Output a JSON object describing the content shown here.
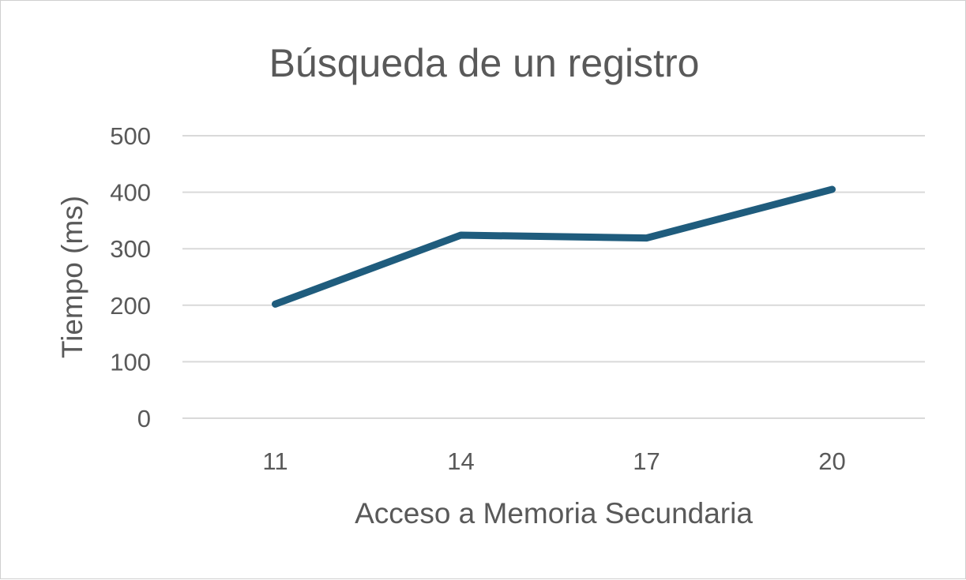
{
  "chart_data": {
    "type": "line",
    "title": "Búsqueda de un registro",
    "xlabel": "Acceso a Memoria Secundaria",
    "ylabel": "Tiempo (ms)",
    "categories": [
      "11",
      "14",
      "17",
      "20"
    ],
    "series": [
      {
        "values": [
          202,
          324,
          319,
          405
        ],
        "color": "#1f5c7d"
      }
    ],
    "ylim": [
      0,
      500
    ],
    "yticks": [
      "0",
      "100",
      "200",
      "300",
      "400",
      "500"
    ],
    "grid": true,
    "legend": "none"
  }
}
